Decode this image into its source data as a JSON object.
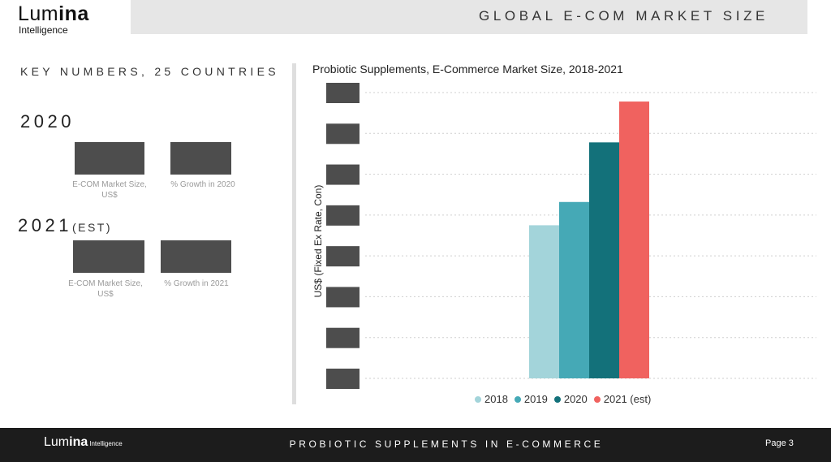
{
  "header": {
    "logo_main_light": "Lum",
    "logo_main_bold": "ina",
    "logo_sub": "Intelligence",
    "title": "GLOBAL E-COM MARKET SIZE"
  },
  "left_panel": {
    "heading": "KEY NUMBERS, 25 COUNTRIES",
    "year_2020": "2020",
    "year_2021": "2021",
    "year_2021_suffix": "(EST)",
    "kpi_2020_size_label": "E-COM Market Size, US$",
    "kpi_2020_growth_label": "% Growth in 2020",
    "kpi_2021_size_label": "E-COM Market Size, US$",
    "kpi_2021_growth_label": "% Growth in 2021"
  },
  "chart_data": {
    "type": "bar",
    "title": "Probiotic Supplements, E-Commerce Market Size, 2018-2021",
    "ylabel": "US$ (Fixed Ex Rate, Con)",
    "xlabel": "",
    "ylim": [
      0,
      7
    ],
    "grid": true,
    "gridlines": 7,
    "y_tick_labels_redacted": true,
    "legend_position": "bottom",
    "series": [
      {
        "name": "2018",
        "value": 3.75,
        "color": "#a3d4da"
      },
      {
        "name": "2019",
        "value": 4.32,
        "color": "#45a9b6"
      },
      {
        "name": "2020",
        "value": 5.78,
        "color": "#13717a"
      },
      {
        "name": "2021 (est)",
        "value": 6.78,
        "color": "#f0625f"
      }
    ]
  },
  "footer": {
    "logo_light": "Lum",
    "logo_bold": "ina",
    "logo_sub": "Intelligence",
    "title": "PROBIOTIC SUPPLEMENTS IN E-COMMERCE",
    "page": "Page 3"
  }
}
